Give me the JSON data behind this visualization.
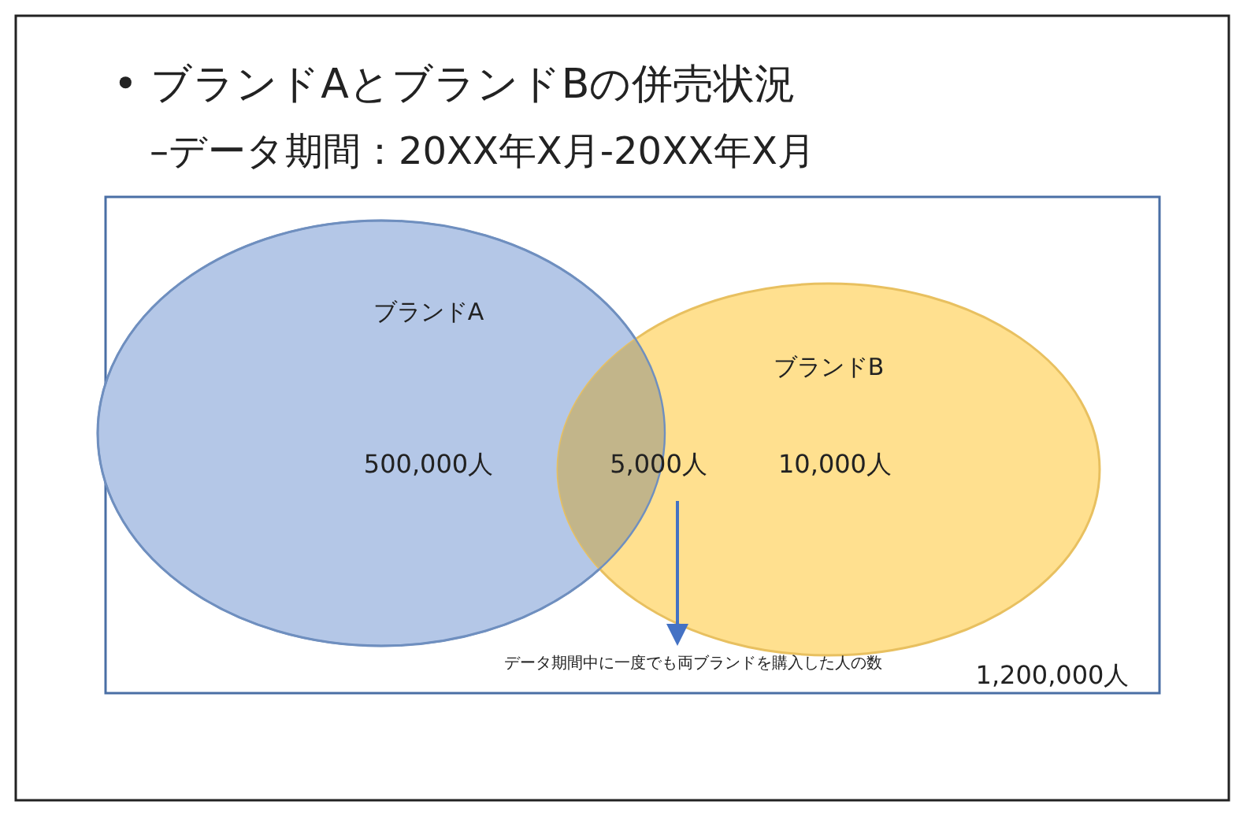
{
  "chart_data": {
    "type": "other",
    "title": "• ブランドAとブランドBの併売状況",
    "subtitle": "–データ期間：20XX年X月-20XX年X月",
    "categories": [
      "ブランドA",
      null,
      "ブランドB"
    ],
    "values": [
      500000,
      5000,
      10000
    ],
    "value_labels": [
      "500,000人",
      "5,000人",
      "10,000人"
    ],
    "colors": [
      "#b4c7e7",
      "#c2b58a",
      "#ffe08f"
    ],
    "annotations": [
      "データ期間中に一度でも両ブランドを購入した人の数",
      "1,200,000人"
    ]
  }
}
